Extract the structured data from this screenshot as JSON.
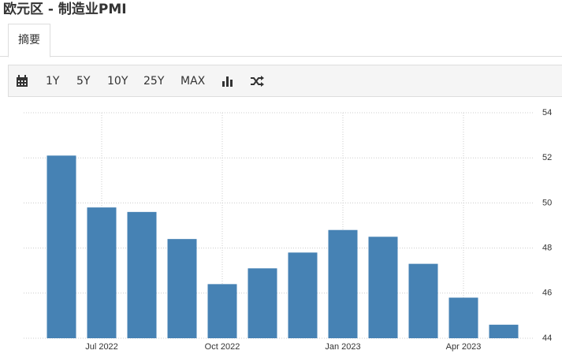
{
  "header": {
    "title": "欧元区 - 制造业PMI"
  },
  "tabs": [
    "摘要"
  ],
  "toolbar": [
    "1Y",
    "5Y",
    "10Y",
    "25Y",
    "MAX"
  ],
  "chart_data": {
    "type": "bar",
    "categories": [
      null,
      "Jul 2022",
      null,
      null,
      "Oct 2022",
      null,
      null,
      "Jan 2023",
      null,
      null,
      "Apr 2023",
      null
    ],
    "values": [
      52.1,
      49.8,
      49.6,
      48.4,
      46.4,
      47.1,
      47.8,
      48.8,
      48.5,
      47.3,
      45.8,
      44.6
    ],
    "color": "#4682b4",
    "ylim": [
      44,
      54
    ],
    "yticks": [
      44,
      46,
      48,
      50,
      52,
      54
    ],
    "grid": true
  }
}
